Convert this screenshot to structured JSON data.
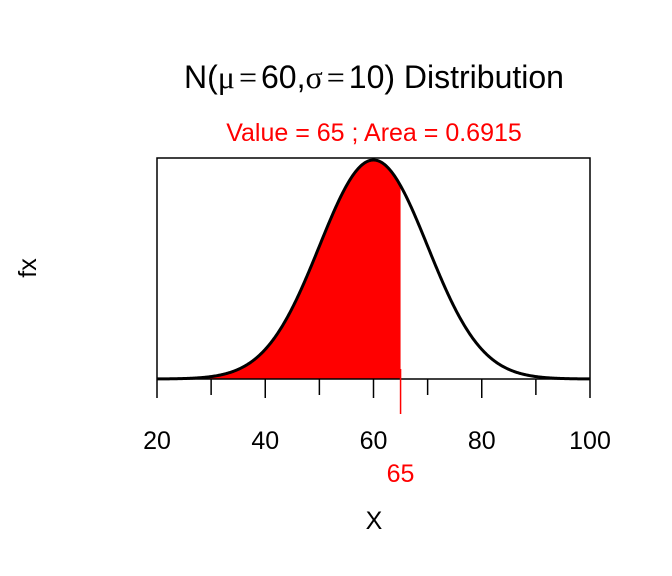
{
  "chart_data": {
    "type": "area",
    "title_parts": {
      "prefix": "N(",
      "mu_symbol": "μ",
      "sigma_symbol": "σ",
      "equals": "=",
      "mu_value": "60",
      "separator": ",",
      "sigma_value": "10",
      "suffix": ") Distribution"
    },
    "subtitle": "Value = 65 ; Area = 0.6915",
    "xlabel": "X",
    "ylabel": "fx",
    "mean": 60,
    "sd": 10,
    "value": 65,
    "value_label": "65",
    "area": 0.6915,
    "xlim": [
      20,
      100
    ],
    "x_ticks_major": [
      20,
      40,
      60,
      80,
      100
    ],
    "x_tick_labels": [
      "20",
      "40",
      "60",
      "80",
      "100"
    ],
    "x_ticks_minor": [
      30,
      50,
      70,
      90
    ],
    "shaded_region": "left-tail",
    "grid": false,
    "colors": {
      "curve": "#000000",
      "shade": "#ff0000",
      "subtitle": "#ff0000",
      "value_marker": "#ff0000",
      "axis": "#000000"
    }
  }
}
